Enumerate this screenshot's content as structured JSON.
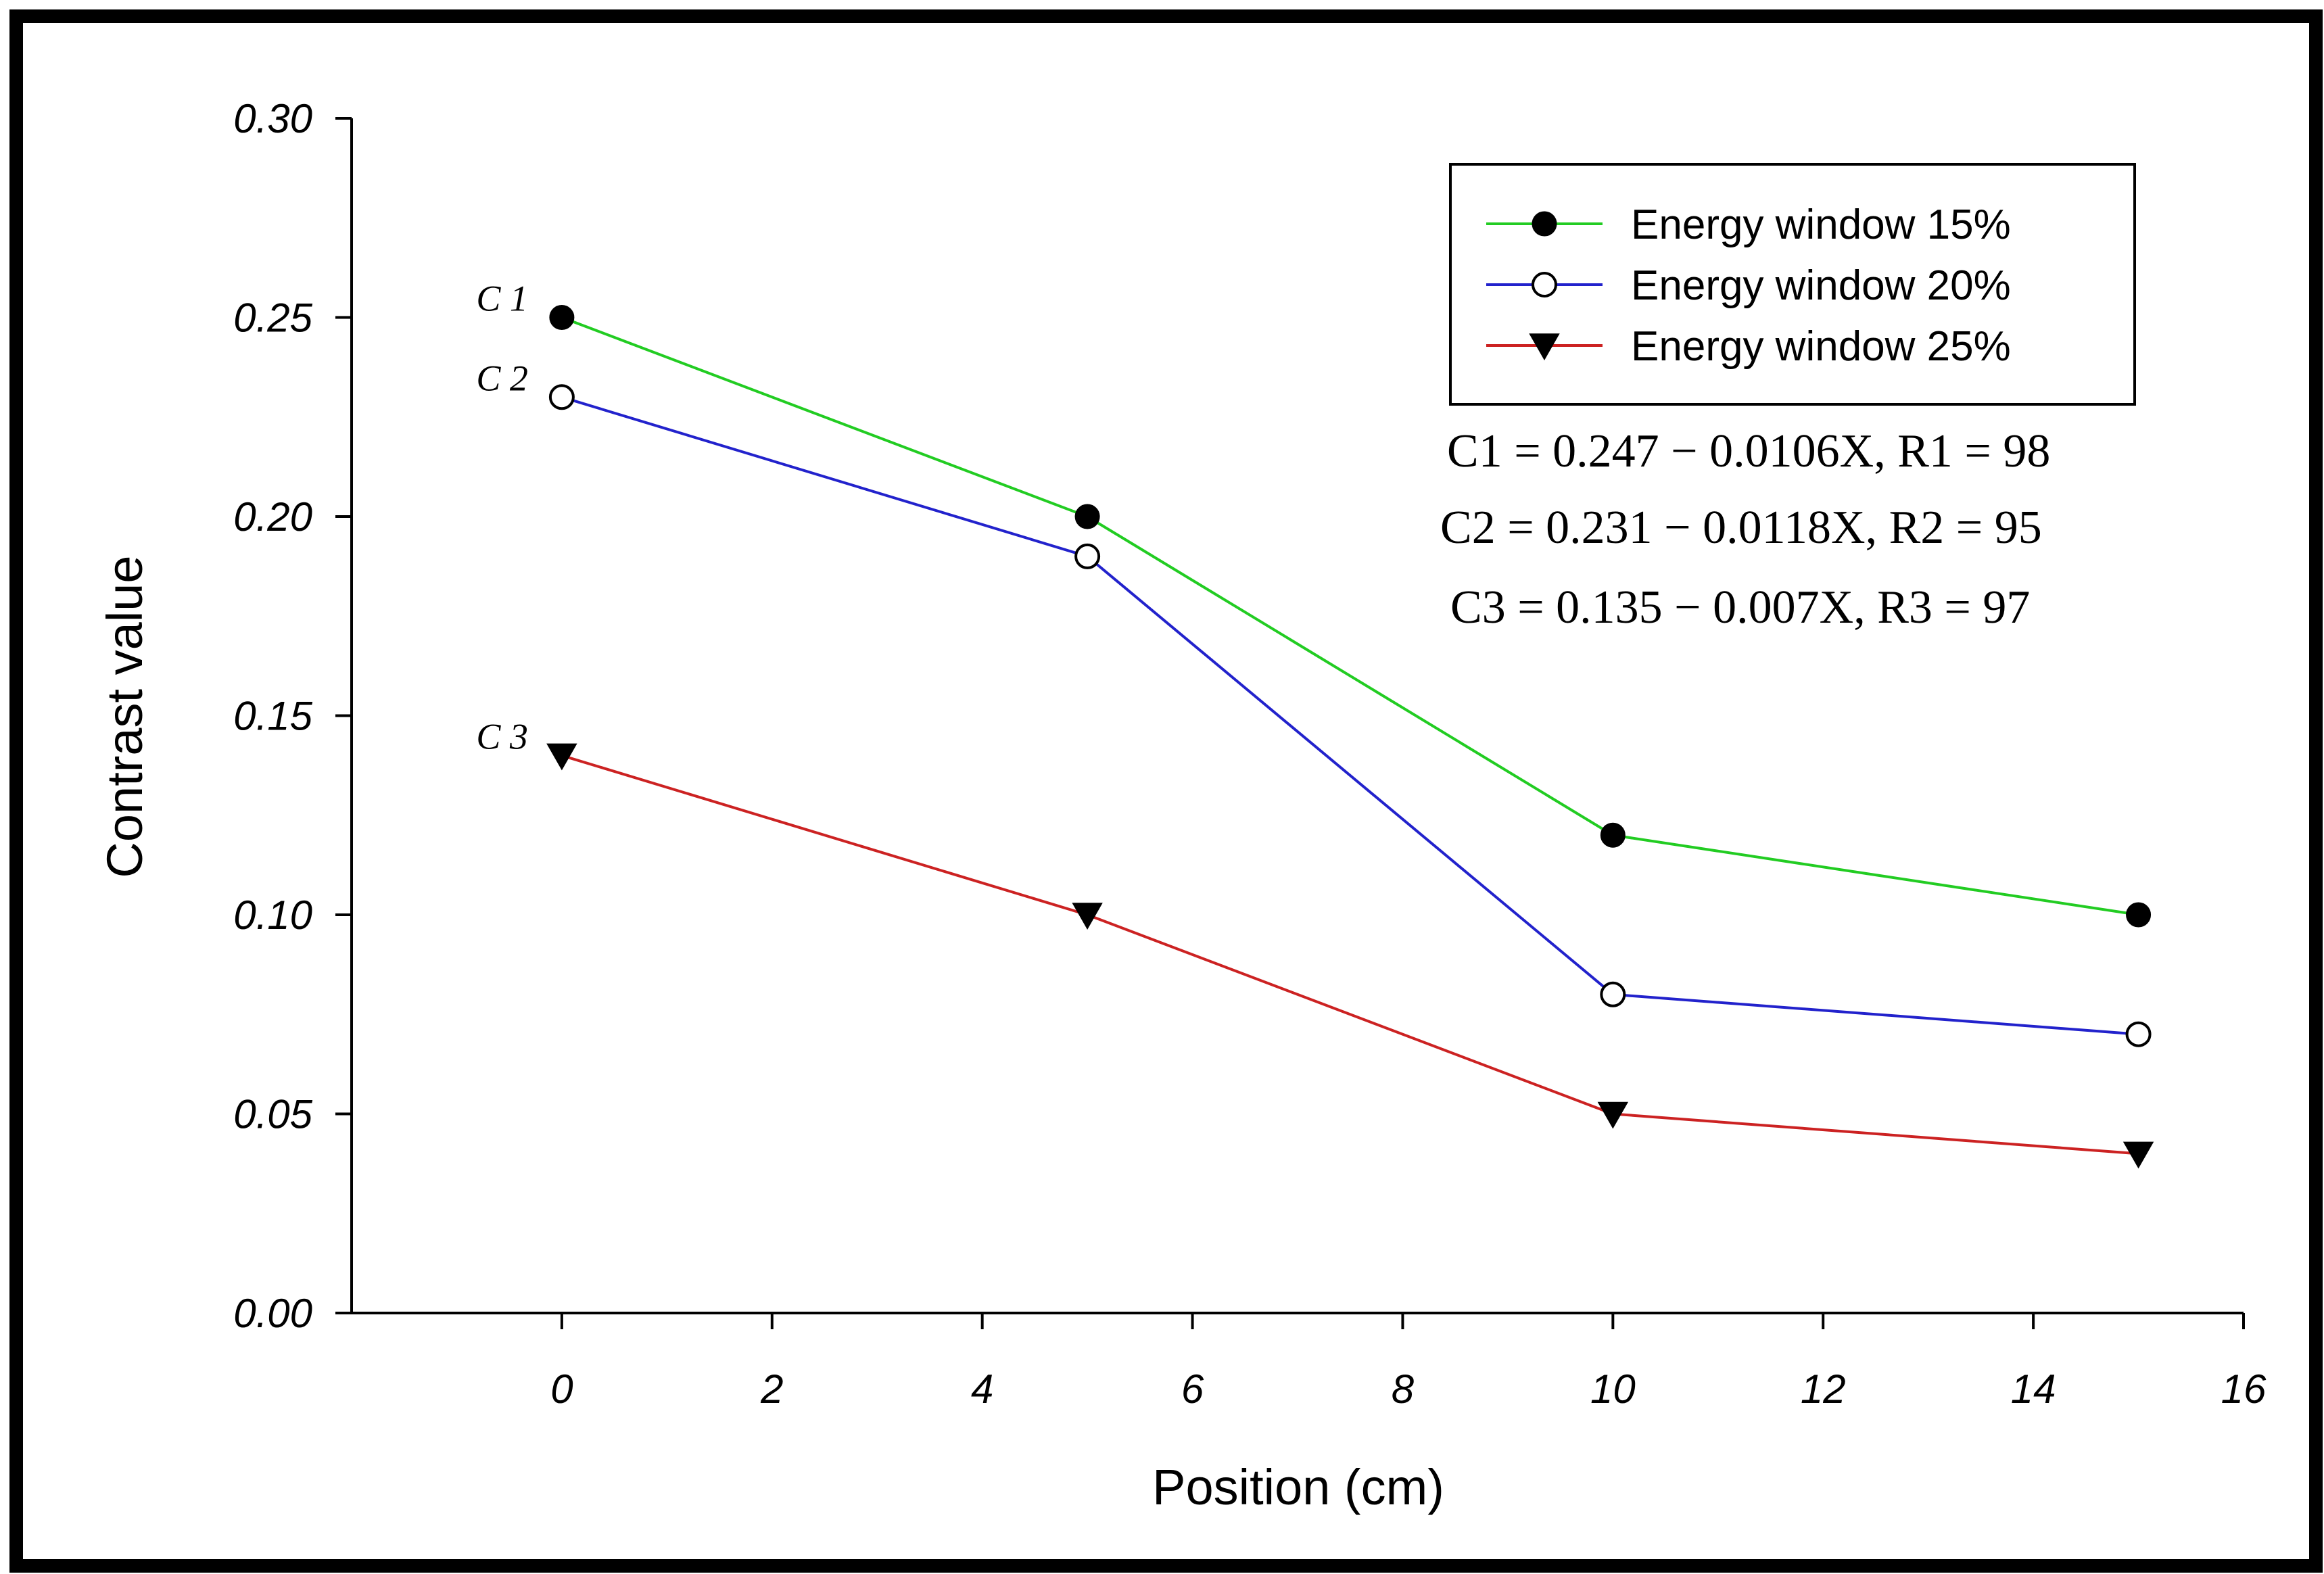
{
  "chart_data": {
    "type": "line",
    "xlabel": "Position (cm)",
    "ylabel": "Contrast value",
    "xlim": [
      -2.0,
      16
    ],
    "ylim": [
      0.0,
      0.3
    ],
    "x_ticks": [
      0,
      2,
      4,
      6,
      8,
      10,
      12,
      14,
      16
    ],
    "x_tick_labels": [
      "0",
      "2",
      "4",
      "6",
      "8",
      "10",
      "12",
      "14",
      "16"
    ],
    "y_ticks": [
      0.0,
      0.05,
      0.1,
      0.15,
      0.2,
      0.25,
      0.3
    ],
    "y_tick_labels": [
      "0.00",
      "0.05",
      "0.10",
      "0.15",
      "0.20",
      "0.25",
      "0.30"
    ],
    "grid": false,
    "legend_position": "top-right",
    "x": [
      0,
      5,
      10,
      15
    ],
    "series": [
      {
        "name": "Energy window 15%",
        "values": [
          0.25,
          0.2,
          0.12,
          0.1
        ],
        "color": "#22cc22",
        "marker": "filled-circle",
        "curve_label": "C 1"
      },
      {
        "name": "Energy window 20%",
        "values": [
          0.23,
          0.19,
          0.08,
          0.07
        ],
        "color": "#2222cc",
        "marker": "open-circle",
        "curve_label": "C 2"
      },
      {
        "name": "Energy window 25%",
        "values": [
          0.14,
          0.1,
          0.05,
          0.04
        ],
        "color": "#cc2222",
        "marker": "filled-triangle-down",
        "curve_label": "C 3"
      }
    ],
    "annotations": [
      "C1 = 0.247 − 0.0106X, R1 = 98",
      "C2 = 0.231 − 0.0118X, R2 = 95",
      "C3 = 0.135 − 0.007X, R3 = 97"
    ]
  }
}
